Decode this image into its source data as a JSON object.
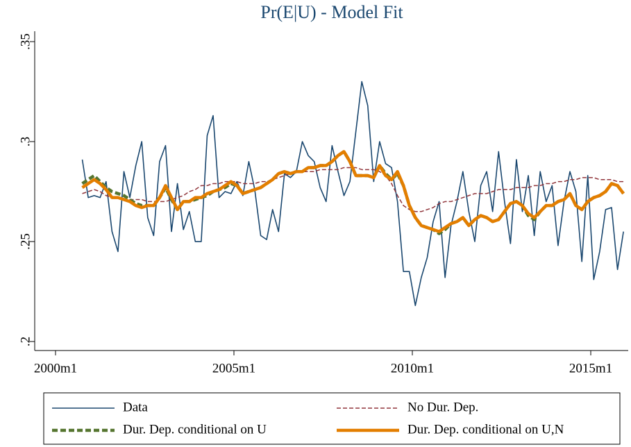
{
  "chart_data": {
    "type": "line",
    "title": "Pr(E|U) - Model Fit",
    "x": [
      489,
      491,
      493,
      495,
      497,
      499,
      501,
      503,
      505,
      507,
      509,
      511,
      513,
      515,
      517,
      519,
      521,
      523,
      525,
      527,
      529,
      531,
      533,
      535,
      537,
      539,
      541,
      543,
      545,
      547,
      549,
      551,
      553,
      555,
      557,
      559,
      561,
      563,
      565,
      567,
      569,
      571,
      573,
      575,
      577,
      579,
      581,
      583,
      585,
      587,
      589,
      591,
      593,
      595,
      597,
      599,
      601,
      603,
      605,
      607,
      609,
      611,
      613,
      615,
      617,
      619,
      621,
      623,
      625,
      627,
      629,
      631,
      633,
      635,
      637,
      639,
      641,
      643,
      645,
      647,
      649,
      651,
      653,
      655,
      657,
      659,
      661,
      663,
      665,
      667,
      669,
      671
    ],
    "xlim": [
      473,
      672.6
    ],
    "xticks": [
      {
        "value": 480,
        "label": "2000m1"
      },
      {
        "value": 540,
        "label": "2005m1"
      },
      {
        "value": 600,
        "label": "2010m1"
      },
      {
        "value": 660,
        "label": "2015m1"
      }
    ],
    "ylim": [
      0.1955,
      0.3552
    ],
    "yticks": [
      {
        "value": 0.2,
        "label": ".2"
      },
      {
        "value": 0.25,
        "label": ".25"
      },
      {
        "value": 0.3,
        "label": ".3"
      },
      {
        "value": 0.35,
        "label": ".35"
      }
    ],
    "grid": false,
    "series": [
      {
        "name": "Data",
        "color": "#1a476f",
        "line_style": "solid",
        "values": [
          0.291,
          0.272,
          0.273,
          0.272,
          0.28,
          0.255,
          0.245,
          0.285,
          0.272,
          0.288,
          0.3,
          0.262,
          0.253,
          0.29,
          0.298,
          0.255,
          0.279,
          0.256,
          0.265,
          0.25,
          0.25,
          0.303,
          0.313,
          0.272,
          0.275,
          0.274,
          0.28,
          0.273,
          0.29,
          0.276,
          0.253,
          0.251,
          0.266,
          0.255,
          0.284,
          0.282,
          0.285,
          0.3,
          0.293,
          0.29,
          0.277,
          0.27,
          0.298,
          0.285,
          0.273,
          0.28,
          0.305,
          0.33,
          0.318,
          0.28,
          0.3,
          0.289,
          0.287,
          0.27,
          0.235,
          0.235,
          0.218,
          0.232,
          0.242,
          0.26,
          0.27,
          0.232,
          0.258,
          0.27,
          0.285,
          0.265,
          0.25,
          0.278,
          0.285,
          0.265,
          0.295,
          0.27,
          0.249,
          0.291,
          0.265,
          0.283,
          0.253,
          0.285,
          0.27,
          0.278,
          0.248,
          0.27,
          0.285,
          0.275,
          0.24,
          0.283,
          0.231,
          0.245,
          0.266,
          0.267,
          0.236,
          0.255
        ]
      },
      {
        "name": "No Dur. Dep.",
        "color": "#90353b",
        "line_style": "dashed",
        "values": [
          0.274,
          0.275,
          0.276,
          0.275,
          0.273,
          0.272,
          0.272,
          0.271,
          0.271,
          0.271,
          0.271,
          0.27,
          0.27,
          0.27,
          0.27,
          0.271,
          0.272,
          0.273,
          0.275,
          0.276,
          0.278,
          0.278,
          0.279,
          0.279,
          0.28,
          0.28,
          0.28,
          0.279,
          0.279,
          0.279,
          0.28,
          0.28,
          0.281,
          0.282,
          0.283,
          0.284,
          0.285,
          0.285,
          0.285,
          0.285,
          0.286,
          0.286,
          0.286,
          0.286,
          0.287,
          0.287,
          0.287,
          0.286,
          0.286,
          0.286,
          0.285,
          0.283,
          0.279,
          0.273,
          0.268,
          0.266,
          0.265,
          0.265,
          0.266,
          0.267,
          0.269,
          0.27,
          0.27,
          0.271,
          0.272,
          0.273,
          0.274,
          0.274,
          0.274,
          0.275,
          0.276,
          0.276,
          0.276,
          0.277,
          0.277,
          0.277,
          0.278,
          0.278,
          0.279,
          0.279,
          0.28,
          0.28,
          0.281,
          0.281,
          0.282,
          0.282,
          0.282,
          0.281,
          0.281,
          0.281,
          0.28,
          0.28
        ]
      },
      {
        "name": "Dur. Dep. conditional on U",
        "color": "#55752f",
        "line_style": "dashed",
        "values": [
          0.279,
          0.281,
          0.283,
          0.28,
          0.277,
          0.275,
          0.274,
          0.273,
          0.271,
          0.269,
          0.268,
          0.268,
          0.268,
          0.272,
          0.277,
          0.271,
          0.266,
          0.27,
          0.27,
          0.271,
          0.272,
          0.273,
          0.275,
          0.276,
          0.277,
          0.279,
          0.278,
          0.274,
          0.275,
          0.276,
          0.277,
          0.279,
          0.281,
          0.284,
          0.285,
          0.284,
          0.285,
          0.285,
          0.287,
          0.287,
          0.288,
          0.288,
          0.29,
          0.293,
          0.295,
          0.29,
          0.283,
          0.283,
          0.283,
          0.282,
          0.288,
          0.284,
          0.281,
          0.284,
          0.278,
          0.268,
          0.262,
          0.258,
          0.257,
          0.256,
          0.254,
          0.256,
          0.259,
          0.26,
          0.262,
          0.258,
          0.261,
          0.263,
          0.262,
          0.26,
          0.261,
          0.265,
          0.269,
          0.27,
          0.268,
          0.263,
          0.261,
          0.265,
          0.268,
          0.268,
          0.27,
          0.271,
          0.274,
          0.268,
          0.266,
          0.27,
          0.272,
          0.273,
          0.275,
          0.279,
          0.278,
          0.274
        ]
      },
      {
        "name": "Dur. Dep. conditional on U,N",
        "color": "#e37e00",
        "line_style": "solid",
        "values": [
          0.277,
          0.279,
          0.281,
          0.279,
          0.276,
          0.272,
          0.272,
          0.271,
          0.27,
          0.268,
          0.267,
          0.268,
          0.268,
          0.272,
          0.278,
          0.272,
          0.266,
          0.27,
          0.27,
          0.272,
          0.272,
          0.274,
          0.275,
          0.276,
          0.278,
          0.28,
          0.278,
          0.274,
          0.275,
          0.276,
          0.277,
          0.279,
          0.281,
          0.284,
          0.285,
          0.284,
          0.285,
          0.285,
          0.287,
          0.287,
          0.288,
          0.288,
          0.29,
          0.293,
          0.295,
          0.29,
          0.283,
          0.283,
          0.283,
          0.282,
          0.288,
          0.283,
          0.281,
          0.285,
          0.278,
          0.268,
          0.262,
          0.258,
          0.257,
          0.256,
          0.255,
          0.257,
          0.259,
          0.26,
          0.262,
          0.258,
          0.261,
          0.263,
          0.262,
          0.26,
          0.261,
          0.265,
          0.269,
          0.27,
          0.268,
          0.264,
          0.262,
          0.265,
          0.268,
          0.268,
          0.27,
          0.271,
          0.274,
          0.268,
          0.266,
          0.27,
          0.272,
          0.273,
          0.275,
          0.279,
          0.278,
          0.274
        ]
      }
    ]
  }
}
